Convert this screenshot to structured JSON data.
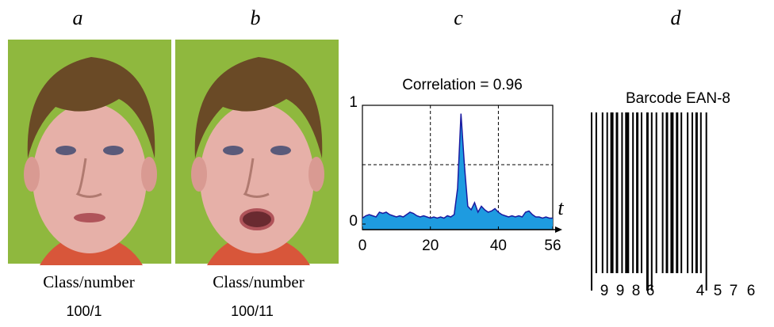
{
  "panels": [
    {
      "label": "a",
      "caption": "Class/number",
      "number": "100/1"
    },
    {
      "label": "b",
      "caption": "Class/number",
      "number": "100/11"
    }
  ],
  "chart_data": {
    "type": "area",
    "label": "c",
    "title": "Correlation = 0.96",
    "x_label": "t",
    "color": "#1e9be0",
    "line_color": "#1a1aa0",
    "x": [
      0,
      1,
      2,
      3,
      4,
      5,
      6,
      7,
      8,
      9,
      10,
      11,
      12,
      13,
      14,
      15,
      16,
      17,
      18,
      19,
      20,
      21,
      22,
      23,
      24,
      25,
      26,
      27,
      28,
      29,
      30,
      31,
      32,
      33,
      34,
      35,
      36,
      37,
      38,
      39,
      40,
      41,
      42,
      43,
      44,
      45,
      46,
      47,
      48,
      49,
      50,
      51,
      52,
      53,
      54,
      55,
      56
    ],
    "values": [
      0.05,
      0.07,
      0.08,
      0.07,
      0.06,
      0.1,
      0.09,
      0.1,
      0.08,
      0.07,
      0.06,
      0.07,
      0.06,
      0.08,
      0.1,
      0.09,
      0.07,
      0.06,
      0.07,
      0.06,
      0.05,
      0.06,
      0.05,
      0.06,
      0.05,
      0.07,
      0.06,
      0.08,
      0.3,
      0.93,
      0.5,
      0.15,
      0.12,
      0.18,
      0.1,
      0.15,
      0.12,
      0.1,
      0.11,
      0.13,
      0.1,
      0.08,
      0.07,
      0.06,
      0.07,
      0.06,
      0.07,
      0.06,
      0.1,
      0.11,
      0.08,
      0.06,
      0.06,
      0.05,
      0.06,
      0.05,
      0.05
    ],
    "xlim": [
      0,
      56
    ],
    "ylim": [
      0,
      1
    ],
    "xticks": [
      0,
      20,
      40,
      56
    ],
    "yticks": [
      0,
      1
    ],
    "grid": true,
    "grid_y": [
      0.5
    ]
  },
  "barcode": {
    "label": "d",
    "title": "Barcode EAN-8",
    "digits": [
      "9",
      "9",
      "8",
      "6",
      "4",
      "5",
      "7",
      "6"
    ]
  }
}
